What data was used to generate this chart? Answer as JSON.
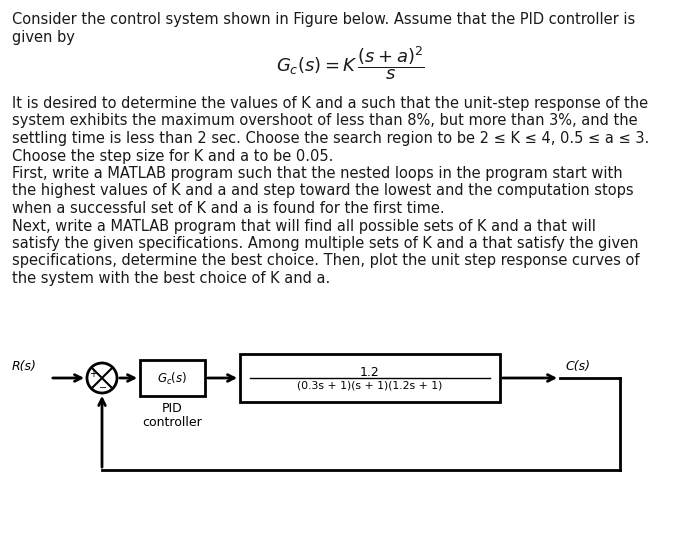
{
  "background_color": "#ffffff",
  "text_color": "#1a1a1a",
  "line1": "Consider the control system shown in Figure below. Assume that the PID controller is",
  "line2": "given by",
  "body_text": "It is desired to determine the values of K and a such that the unit-step response of the\nsystem exhibits the maximum overshoot of less than 8%, but more than 3%, and the\nsettling time is less than 2 sec. Choose the search region to be 2 ≤ K ≤ 4, 0.5 ≤ a ≤ 3.\nChoose the step size for K and a to be 0.05.\nFirst, write a MATLAB program such that the nested loops in the program start with\nthe highest values of K and a and step toward the lowest and the computation stops\nwhen a successful set of K and a is found for the first time.\nNext, write a MATLAB program that will find all possible sets of K and a that will\nsatisfy the given specifications. Among multiple sets of K and a that satisfy the given\nspecifications, determine the best choice. Then, plot the unit step response curves of\nthe system with the best choice of K and a.",
  "Rs_label": "R(s)",
  "Cs_label": "C(s)",
  "Gc_label": "$G_c(s)$",
  "plant_num": "1.2",
  "plant_den": "(0.3s + 1)(s + 1)(1.2s + 1)",
  "pid_label1": "PID",
  "pid_label2": "controller",
  "font_size_body": 10.5,
  "font_size_diag": 9,
  "font_size_formula": 13
}
